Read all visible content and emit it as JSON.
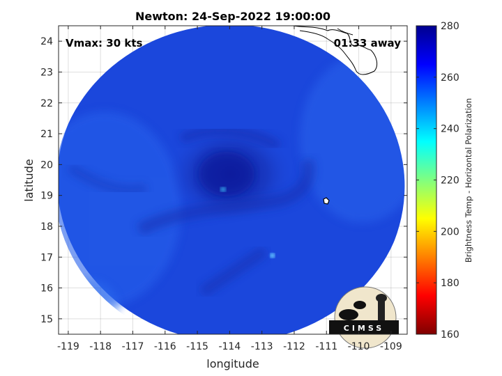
{
  "title": "Newton: 24-Sep-2022 19:00:00",
  "annotations": {
    "vmax": "Vmax: 30 kts",
    "time_away": "01:33 away"
  },
  "logo": {
    "text": "CIMSS"
  },
  "colorbar": {
    "label": "Brightness Temp - Horizontal Polarization",
    "range": [
      160,
      280
    ],
    "ticks": [
      "160",
      "180",
      "200",
      "220",
      "240",
      "260",
      "280"
    ],
    "colors": [
      "#7f0000",
      "#ff0000",
      "#ff8000",
      "#ffff00",
      "#80ff80",
      "#00ffff",
      "#0080ff",
      "#0000ff",
      "#00008f"
    ]
  },
  "chart_data": {
    "type": "heatmap",
    "xlabel": "longitude",
    "ylabel": "latitude",
    "xlim": [
      -119.3,
      -108.5
    ],
    "ylim": [
      14.5,
      24.5
    ],
    "xticks": [
      "-119",
      "-118",
      "-117",
      "-116",
      "-115",
      "-114",
      "-113",
      "-112",
      "-111",
      "-110",
      "-109"
    ],
    "yticks": [
      "15",
      "16",
      "17",
      "18",
      "19",
      "20",
      "21",
      "22",
      "23",
      "24"
    ],
    "grid": true,
    "storm_center": {
      "lon": -113.8,
      "lat": 19.2
    },
    "swath_center": {
      "lon": -114.0,
      "lat": 19.3
    }
  }
}
